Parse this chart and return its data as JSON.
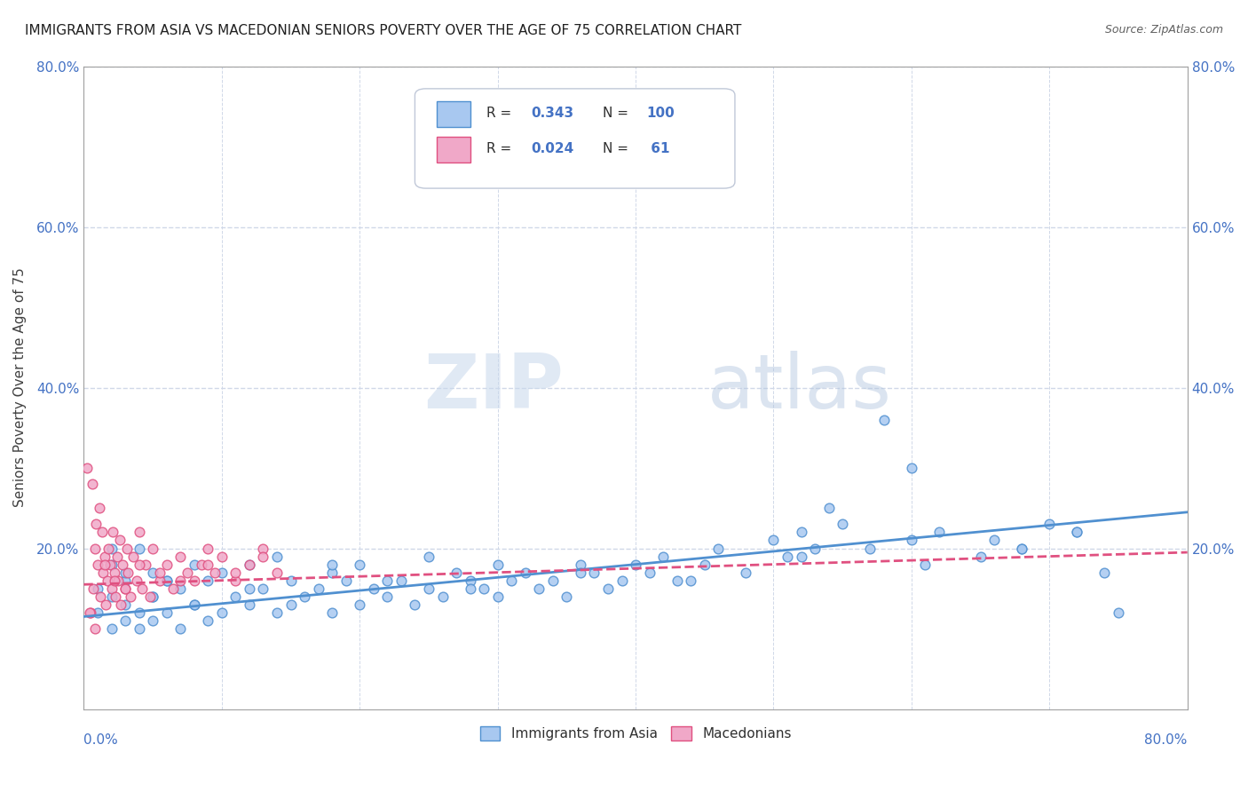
{
  "title": "IMMIGRANTS FROM ASIA VS MACEDONIAN SENIORS POVERTY OVER THE AGE OF 75 CORRELATION CHART",
  "source": "Source: ZipAtlas.com",
  "ylabel": "Seniors Poverty Over the Age of 75",
  "xlim": [
    0.0,
    0.8
  ],
  "ylim": [
    0.0,
    0.8
  ],
  "watermark_zip": "ZIP",
  "watermark_atlas": "atlas",
  "legend_r1": "0.343",
  "legend_n1": "100",
  "legend_r2": "0.024",
  "legend_n2": " 61",
  "color_asia": "#a8c8f0",
  "color_macedonia": "#f0a8c8",
  "color_asia_line": "#5090d0",
  "color_macedonia_line": "#e05080",
  "color_text_blue": "#4472c4",
  "color_axis": "#a0a0a0",
  "color_grid": "#d0d8e8",
  "background_color": "#ffffff",
  "asia_scatter_x": [
    0.01,
    0.01,
    0.02,
    0.02,
    0.02,
    0.03,
    0.03,
    0.03,
    0.04,
    0.04,
    0.04,
    0.05,
    0.05,
    0.05,
    0.06,
    0.06,
    0.07,
    0.07,
    0.08,
    0.08,
    0.09,
    0.09,
    0.1,
    0.1,
    0.11,
    0.12,
    0.12,
    0.13,
    0.14,
    0.14,
    0.15,
    0.15,
    0.16,
    0.17,
    0.18,
    0.18,
    0.19,
    0.2,
    0.2,
    0.21,
    0.22,
    0.23,
    0.24,
    0.25,
    0.25,
    0.26,
    0.27,
    0.28,
    0.29,
    0.3,
    0.3,
    0.31,
    0.32,
    0.33,
    0.34,
    0.35,
    0.36,
    0.37,
    0.38,
    0.39,
    0.4,
    0.41,
    0.42,
    0.43,
    0.45,
    0.46,
    0.48,
    0.5,
    0.51,
    0.52,
    0.53,
    0.54,
    0.55,
    0.57,
    0.58,
    0.6,
    0.61,
    0.62,
    0.65,
    0.66,
    0.68,
    0.7,
    0.72,
    0.74,
    0.75,
    0.02,
    0.03,
    0.05,
    0.06,
    0.08,
    0.12,
    0.18,
    0.22,
    0.28,
    0.36,
    0.44,
    0.52,
    0.6,
    0.68,
    0.72
  ],
  "asia_scatter_y": [
    0.12,
    0.15,
    0.1,
    0.14,
    0.18,
    0.11,
    0.13,
    0.16,
    0.1,
    0.12,
    0.2,
    0.11,
    0.14,
    0.17,
    0.12,
    0.16,
    0.1,
    0.15,
    0.13,
    0.18,
    0.11,
    0.16,
    0.12,
    0.17,
    0.14,
    0.13,
    0.18,
    0.15,
    0.12,
    0.19,
    0.13,
    0.16,
    0.14,
    0.15,
    0.12,
    0.17,
    0.16,
    0.13,
    0.18,
    0.15,
    0.14,
    0.16,
    0.13,
    0.15,
    0.19,
    0.14,
    0.17,
    0.16,
    0.15,
    0.14,
    0.18,
    0.16,
    0.17,
    0.15,
    0.16,
    0.14,
    0.18,
    0.17,
    0.15,
    0.16,
    0.18,
    0.17,
    0.19,
    0.16,
    0.18,
    0.2,
    0.17,
    0.21,
    0.19,
    0.22,
    0.2,
    0.25,
    0.23,
    0.2,
    0.36,
    0.3,
    0.18,
    0.22,
    0.19,
    0.21,
    0.2,
    0.23,
    0.22,
    0.17,
    0.12,
    0.2,
    0.17,
    0.14,
    0.16,
    0.13,
    0.15,
    0.18,
    0.16,
    0.15,
    0.17,
    0.16,
    0.19,
    0.21,
    0.2,
    0.22
  ],
  "mac_scatter_x": [
    0.005,
    0.007,
    0.008,
    0.01,
    0.011,
    0.012,
    0.013,
    0.014,
    0.015,
    0.016,
    0.017,
    0.018,
    0.019,
    0.02,
    0.021,
    0.022,
    0.023,
    0.024,
    0.025,
    0.026,
    0.027,
    0.028,
    0.03,
    0.031,
    0.032,
    0.034,
    0.036,
    0.038,
    0.04,
    0.042,
    0.045,
    0.048,
    0.05,
    0.055,
    0.06,
    0.065,
    0.07,
    0.075,
    0.08,
    0.085,
    0.09,
    0.095,
    0.1,
    0.11,
    0.12,
    0.13,
    0.14,
    0.006,
    0.009,
    0.015,
    0.022,
    0.03,
    0.04,
    0.055,
    0.07,
    0.09,
    0.11,
    0.13,
    0.002,
    0.004,
    0.008
  ],
  "mac_scatter_y": [
    0.12,
    0.15,
    0.2,
    0.18,
    0.25,
    0.14,
    0.22,
    0.17,
    0.19,
    0.13,
    0.16,
    0.2,
    0.18,
    0.15,
    0.22,
    0.17,
    0.14,
    0.19,
    0.16,
    0.21,
    0.13,
    0.18,
    0.15,
    0.2,
    0.17,
    0.14,
    0.19,
    0.16,
    0.22,
    0.15,
    0.18,
    0.14,
    0.2,
    0.16,
    0.18,
    0.15,
    0.19,
    0.17,
    0.16,
    0.18,
    0.2,
    0.17,
    0.19,
    0.16,
    0.18,
    0.2,
    0.17,
    0.28,
    0.23,
    0.18,
    0.16,
    0.15,
    0.18,
    0.17,
    0.16,
    0.18,
    0.17,
    0.19,
    0.3,
    0.12,
    0.1
  ],
  "asia_line_x": [
    0.0,
    0.8
  ],
  "asia_line_y": [
    0.115,
    0.245
  ],
  "mac_line_x": [
    0.0,
    0.8
  ],
  "mac_line_y": [
    0.155,
    0.195
  ]
}
